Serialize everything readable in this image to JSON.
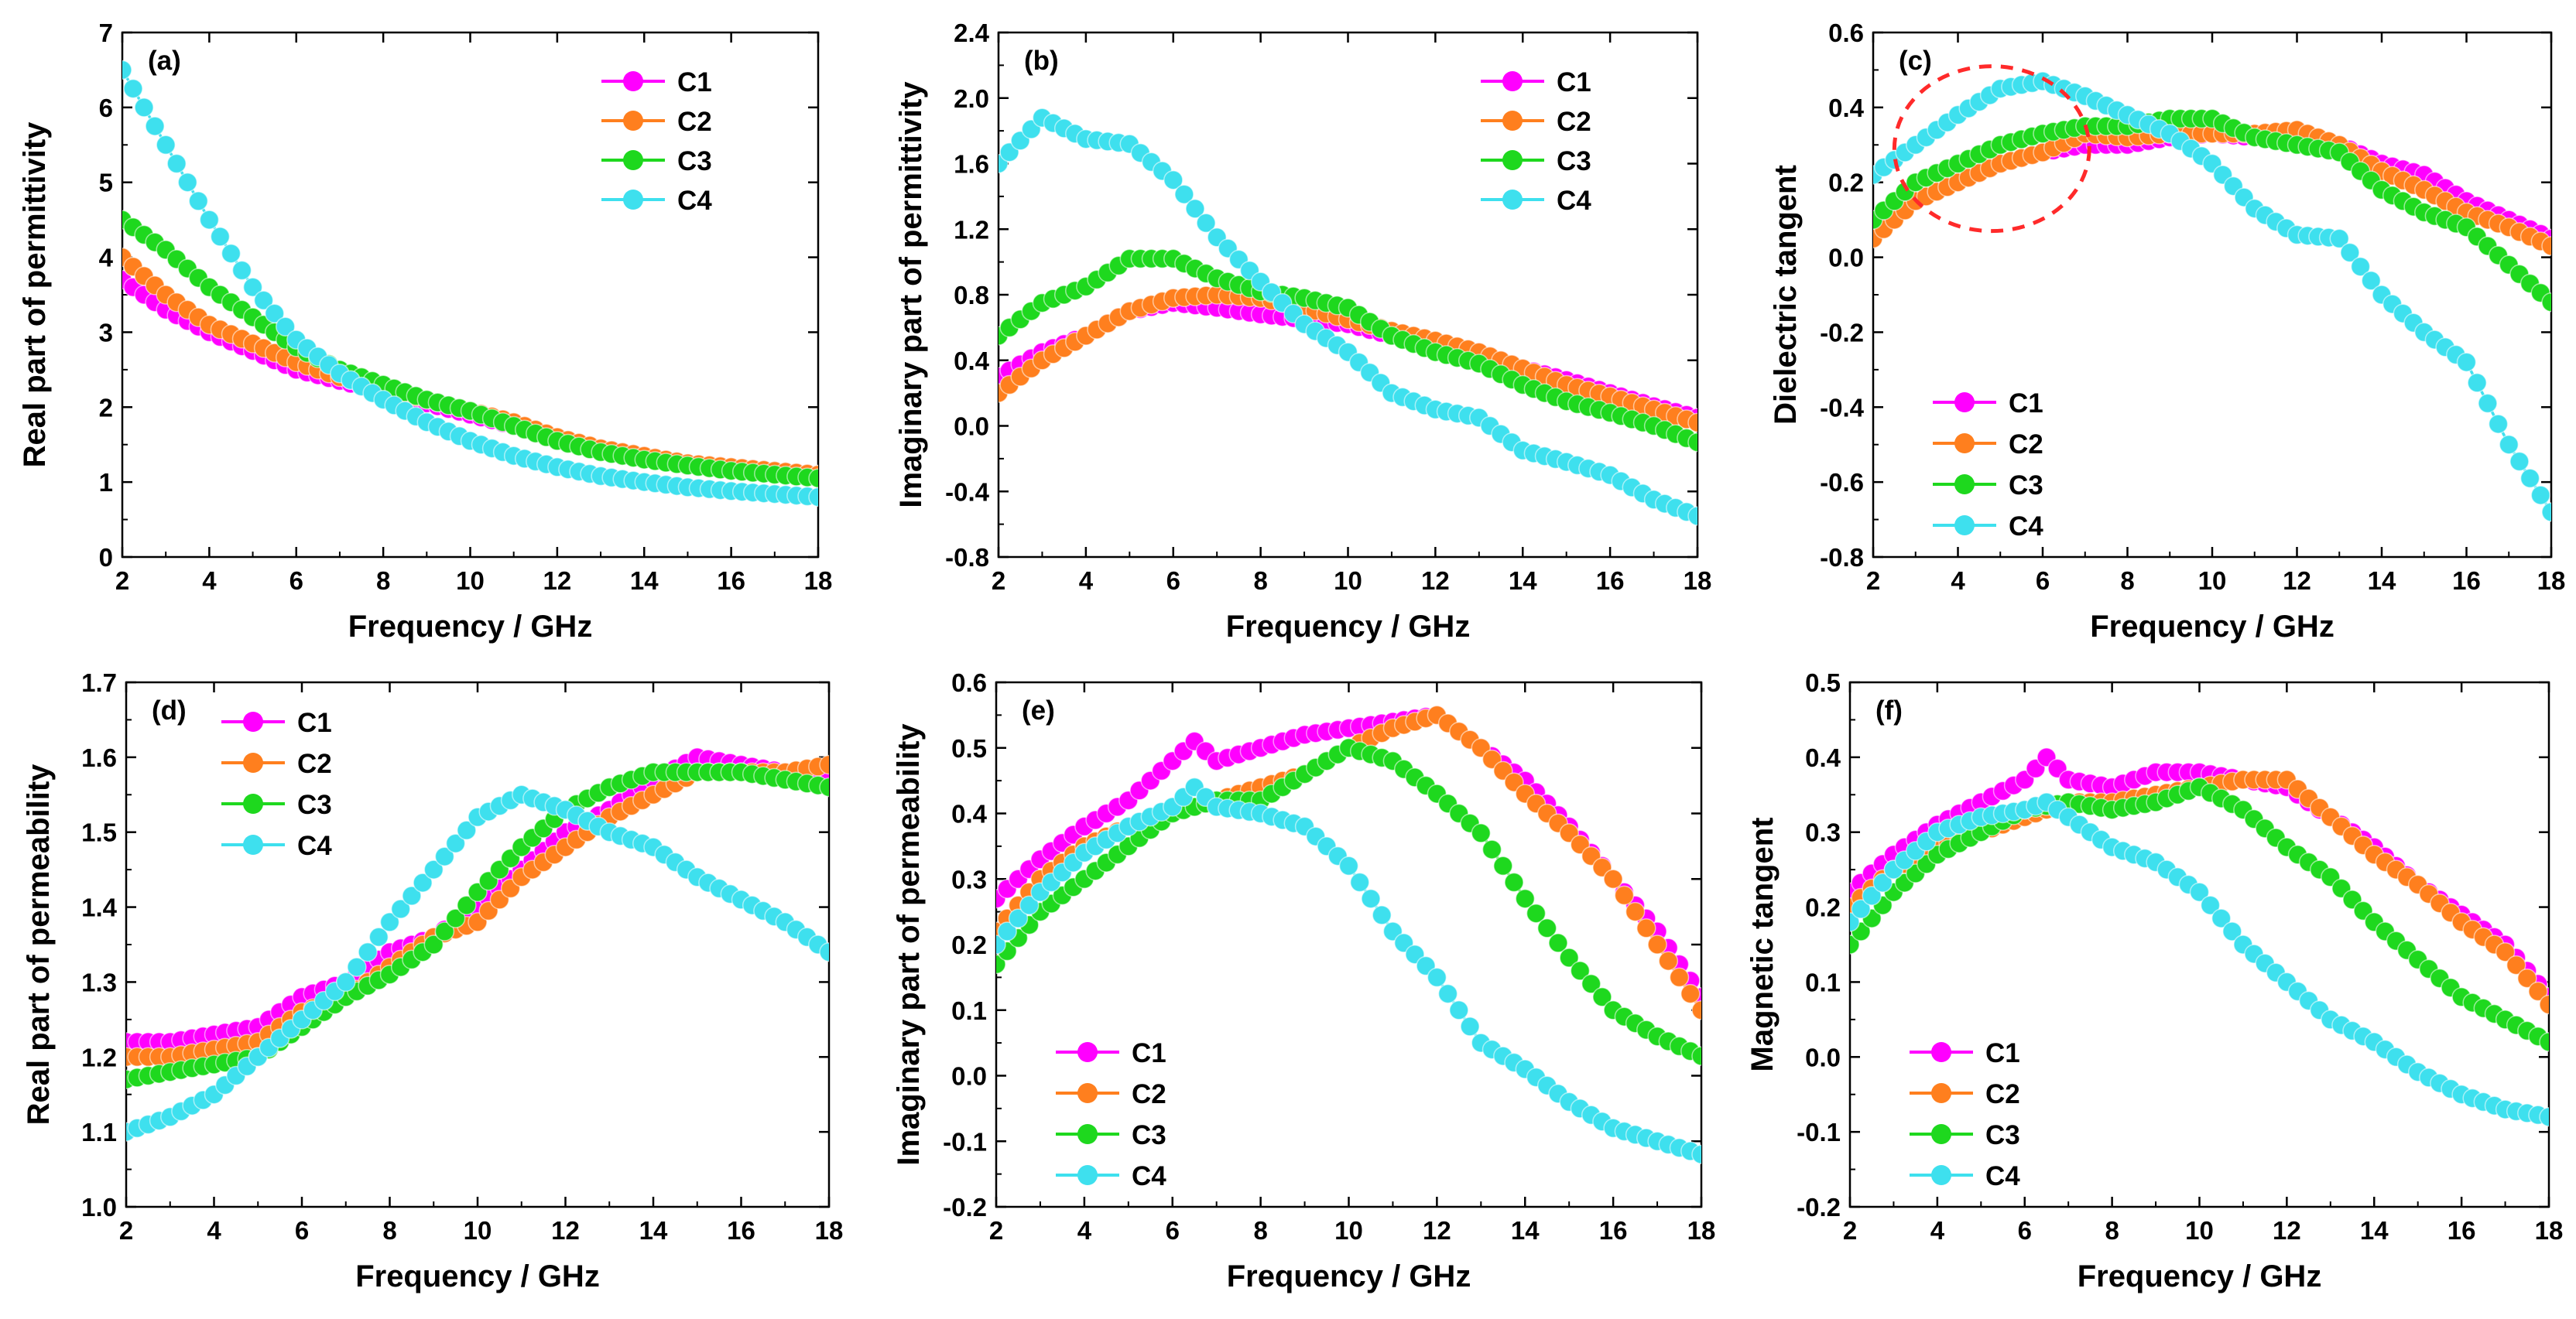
{
  "colors": {
    "C1": "#ff00ff",
    "C2": "#ff7f1e",
    "C3": "#1ed81e",
    "C4": "#3ee0ee",
    "ellipse": "#ff2a2a"
  },
  "chart_data": [
    {
      "id": "a",
      "type": "line",
      "panel_label": "(a)",
      "xlabel": "Frequency / GHz",
      "ylabel": "Real part of permittivity",
      "xlim": [
        2,
        18
      ],
      "ylim": [
        0,
        7
      ],
      "xticks": [
        2,
        4,
        6,
        8,
        10,
        12,
        14,
        16,
        18
      ],
      "yticks": [
        0,
        1,
        2,
        3,
        4,
        5,
        6,
        7
      ],
      "legend_position": "top-right",
      "series": [
        {
          "name": "C1",
          "x": [
            2,
            3,
            4,
            5,
            6,
            7,
            8,
            9,
            10,
            11,
            12,
            13,
            14,
            15,
            16,
            17,
            18
          ],
          "y": [
            3.7,
            3.3,
            3.0,
            2.75,
            2.5,
            2.35,
            2.2,
            2.05,
            1.9,
            1.75,
            1.55,
            1.45,
            1.35,
            1.25,
            1.2,
            1.15,
            1.1
          ]
        },
        {
          "name": "C2",
          "x": [
            2,
            3,
            4,
            5,
            6,
            7,
            8,
            9,
            10,
            11,
            12,
            13,
            14,
            15,
            16,
            17,
            18
          ],
          "y": [
            4.0,
            3.5,
            3.1,
            2.85,
            2.6,
            2.4,
            2.25,
            2.1,
            1.95,
            1.8,
            1.6,
            1.45,
            1.35,
            1.25,
            1.2,
            1.15,
            1.1
          ]
        },
        {
          "name": "C3",
          "x": [
            2,
            3,
            4,
            5,
            6,
            7,
            8,
            9,
            10,
            11,
            12,
            13,
            14,
            15,
            16,
            17,
            18
          ],
          "y": [
            4.5,
            4.1,
            3.6,
            3.2,
            2.8,
            2.5,
            2.3,
            2.1,
            1.95,
            1.75,
            1.55,
            1.4,
            1.3,
            1.22,
            1.15,
            1.1,
            1.05
          ]
        },
        {
          "name": "C4",
          "x": [
            2,
            3,
            4,
            5,
            6,
            7,
            8,
            9,
            10,
            11,
            12,
            13,
            14,
            15,
            16,
            17,
            18
          ],
          "y": [
            6.5,
            5.5,
            4.5,
            3.6,
            2.9,
            2.45,
            2.1,
            1.8,
            1.55,
            1.35,
            1.2,
            1.08,
            1.0,
            0.93,
            0.88,
            0.84,
            0.8
          ]
        }
      ]
    },
    {
      "id": "b",
      "type": "line",
      "panel_label": "(b)",
      "xlabel": "Frequency / GHz",
      "ylabel": "Imaginary part of permittivity",
      "xlim": [
        2,
        18
      ],
      "ylim": [
        -0.8,
        2.4
      ],
      "xticks": [
        2,
        4,
        6,
        8,
        10,
        12,
        14,
        16,
        18
      ],
      "yticks": [
        -0.8,
        -0.4,
        0.0,
        0.4,
        0.8,
        1.2,
        1.6,
        2.0,
        2.4
      ],
      "legend_position": "top-right",
      "series": [
        {
          "name": "C1",
          "x": [
            2,
            3,
            4,
            5,
            6,
            7,
            8,
            9,
            10,
            11,
            12,
            13,
            14,
            15,
            16,
            17,
            18
          ],
          "y": [
            0.3,
            0.45,
            0.55,
            0.7,
            0.75,
            0.72,
            0.68,
            0.65,
            0.62,
            0.55,
            0.5,
            0.45,
            0.35,
            0.28,
            0.2,
            0.12,
            0.05
          ]
        },
        {
          "name": "C2",
          "x": [
            2,
            3,
            4,
            5,
            6,
            7,
            8,
            9,
            10,
            11,
            12,
            13,
            14,
            15,
            16,
            17,
            18
          ],
          "y": [
            0.2,
            0.4,
            0.55,
            0.7,
            0.78,
            0.8,
            0.78,
            0.72,
            0.65,
            0.58,
            0.52,
            0.45,
            0.35,
            0.25,
            0.18,
            0.1,
            0.02
          ]
        },
        {
          "name": "C3",
          "x": [
            2,
            3,
            4,
            5,
            6,
            7,
            8,
            9,
            10,
            11,
            12,
            13,
            14,
            15,
            16,
            17,
            18
          ],
          "y": [
            0.55,
            0.75,
            0.85,
            1.02,
            1.02,
            0.9,
            0.82,
            0.78,
            0.72,
            0.55,
            0.45,
            0.38,
            0.25,
            0.15,
            0.08,
            0.0,
            -0.1
          ]
        },
        {
          "name": "C4",
          "x": [
            2,
            3,
            4,
            5,
            6,
            7,
            8,
            9,
            10,
            11,
            12,
            13,
            14,
            15,
            16,
            17,
            18
          ],
          "y": [
            1.6,
            1.88,
            1.75,
            1.72,
            1.5,
            1.15,
            0.88,
            0.62,
            0.45,
            0.2,
            0.1,
            0.05,
            -0.15,
            -0.22,
            -0.3,
            -0.45,
            -0.55
          ]
        }
      ]
    },
    {
      "id": "c",
      "type": "line",
      "panel_label": "(c)",
      "xlabel": "Frequency / GHz",
      "ylabel": "Dielectric tangent",
      "xlim": [
        2,
        18
      ],
      "ylim": [
        -0.8,
        0.6
      ],
      "xticks": [
        2,
        4,
        6,
        8,
        10,
        12,
        14,
        16,
        18
      ],
      "yticks": [
        -0.8,
        -0.6,
        -0.4,
        -0.2,
        0.0,
        0.2,
        0.4,
        0.6
      ],
      "legend_position": "lower-left",
      "annotation": {
        "type": "dashed-ellipse",
        "center_x": 4.8,
        "center_y": 0.29,
        "rx": 2.3,
        "ry": 0.22
      },
      "series": [
        {
          "name": "C1",
          "x": [
            2,
            3,
            4,
            5,
            6,
            7,
            8,
            9,
            10,
            11,
            12,
            13,
            14,
            15,
            16,
            17,
            18
          ],
          "y": [
            0.07,
            0.15,
            0.2,
            0.25,
            0.28,
            0.3,
            0.3,
            0.32,
            0.33,
            0.32,
            0.32,
            0.3,
            0.25,
            0.22,
            0.15,
            0.1,
            0.05
          ]
        },
        {
          "name": "C2",
          "x": [
            2,
            3,
            4,
            5,
            6,
            7,
            8,
            9,
            10,
            11,
            12,
            13,
            14,
            15,
            16,
            17,
            18
          ],
          "y": [
            0.05,
            0.15,
            0.2,
            0.25,
            0.28,
            0.33,
            0.32,
            0.33,
            0.33,
            0.33,
            0.34,
            0.3,
            0.23,
            0.18,
            0.12,
            0.08,
            0.03
          ]
        },
        {
          "name": "C3",
          "x": [
            2,
            3,
            4,
            5,
            6,
            7,
            8,
            9,
            10,
            11,
            12,
            13,
            14,
            15,
            16,
            17,
            18
          ],
          "y": [
            0.1,
            0.2,
            0.25,
            0.3,
            0.33,
            0.35,
            0.35,
            0.37,
            0.37,
            0.32,
            0.3,
            0.28,
            0.18,
            0.12,
            0.08,
            -0.02,
            -0.12
          ]
        },
        {
          "name": "C4",
          "x": [
            2,
            3,
            4,
            5,
            6,
            7,
            8,
            9,
            10,
            11,
            12,
            13,
            14,
            15,
            16,
            17,
            18
          ],
          "y": [
            0.22,
            0.3,
            0.38,
            0.45,
            0.47,
            0.43,
            0.38,
            0.33,
            0.25,
            0.13,
            0.06,
            0.05,
            -0.1,
            -0.2,
            -0.28,
            -0.5,
            -0.68
          ]
        }
      ]
    },
    {
      "id": "d",
      "type": "line",
      "panel_label": "(d)",
      "xlabel": "Frequency / GHz",
      "ylabel": "Real part of permeability",
      "xlim": [
        2,
        18
      ],
      "ylim": [
        1.0,
        1.7
      ],
      "xticks": [
        2,
        4,
        6,
        8,
        10,
        12,
        14,
        16,
        18
      ],
      "yticks": [
        1.0,
        1.1,
        1.2,
        1.3,
        1.4,
        1.5,
        1.6,
        1.7
      ],
      "legend_position": "top-left",
      "series": [
        {
          "name": "C1",
          "x": [
            2,
            3,
            4,
            5,
            6,
            7,
            8,
            9,
            10,
            11,
            12,
            13,
            14,
            15,
            16,
            17,
            18
          ],
          "y": [
            1.22,
            1.22,
            1.23,
            1.24,
            1.28,
            1.3,
            1.34,
            1.36,
            1.4,
            1.45,
            1.5,
            1.53,
            1.57,
            1.6,
            1.59,
            1.58,
            1.58
          ]
        },
        {
          "name": "C2",
          "x": [
            2,
            3,
            4,
            5,
            6,
            7,
            8,
            9,
            10,
            11,
            12,
            13,
            14,
            15,
            16,
            17,
            18
          ],
          "y": [
            1.2,
            1.2,
            1.21,
            1.22,
            1.26,
            1.28,
            1.32,
            1.36,
            1.38,
            1.44,
            1.48,
            1.52,
            1.55,
            1.58,
            1.58,
            1.58,
            1.59
          ]
        },
        {
          "name": "C3",
          "x": [
            2,
            3,
            4,
            5,
            6,
            7,
            8,
            9,
            10,
            11,
            12,
            13,
            14,
            15,
            16,
            17,
            18
          ],
          "y": [
            1.17,
            1.18,
            1.19,
            1.2,
            1.24,
            1.28,
            1.31,
            1.35,
            1.42,
            1.48,
            1.53,
            1.56,
            1.58,
            1.58,
            1.58,
            1.57,
            1.56
          ]
        },
        {
          "name": "C4",
          "x": [
            2,
            3,
            4,
            5,
            6,
            7,
            8,
            9,
            10,
            11,
            12,
            13,
            14,
            15,
            16,
            17,
            18
          ],
          "y": [
            1.1,
            1.12,
            1.15,
            1.2,
            1.25,
            1.3,
            1.38,
            1.45,
            1.52,
            1.55,
            1.53,
            1.5,
            1.48,
            1.44,
            1.41,
            1.38,
            1.34
          ]
        }
      ]
    },
    {
      "id": "e",
      "type": "line",
      "panel_label": "(e)",
      "xlabel": "Frequency / GHz",
      "ylabel": "Imaginary part of permeability",
      "xlim": [
        2,
        18
      ],
      "ylim": [
        -0.2,
        0.6
      ],
      "xticks": [
        2,
        4,
        6,
        8,
        10,
        12,
        14,
        16,
        18
      ],
      "yticks": [
        -0.2,
        -0.1,
        0.0,
        0.1,
        0.2,
        0.3,
        0.4,
        0.5,
        0.6
      ],
      "legend_position": "lower-left",
      "series": [
        {
          "name": "C1",
          "x": [
            2,
            3,
            4,
            5,
            6,
            6.5,
            7,
            8,
            9,
            10,
            11,
            12,
            13,
            14,
            15,
            16,
            17,
            18
          ],
          "y": [
            0.27,
            0.33,
            0.38,
            0.42,
            0.48,
            0.51,
            0.48,
            0.5,
            0.52,
            0.53,
            0.54,
            0.55,
            0.5,
            0.45,
            0.38,
            0.3,
            0.22,
            0.12
          ]
        },
        {
          "name": "C2",
          "x": [
            2,
            3,
            4,
            5,
            6,
            7,
            8,
            9,
            10,
            11,
            12,
            13,
            14,
            15,
            16,
            17,
            18
          ],
          "y": [
            0.22,
            0.3,
            0.35,
            0.38,
            0.4,
            0.42,
            0.44,
            0.46,
            0.5,
            0.53,
            0.55,
            0.5,
            0.43,
            0.37,
            0.3,
            0.2,
            0.1
          ]
        },
        {
          "name": "C3",
          "x": [
            2,
            3,
            4,
            5,
            6,
            7,
            8,
            9,
            10,
            11,
            12,
            13,
            14,
            15,
            16,
            17,
            18
          ],
          "y": [
            0.17,
            0.25,
            0.3,
            0.35,
            0.4,
            0.42,
            0.42,
            0.46,
            0.5,
            0.48,
            0.43,
            0.37,
            0.27,
            0.18,
            0.1,
            0.06,
            0.03
          ]
        },
        {
          "name": "C4",
          "x": [
            2,
            3,
            4,
            5,
            6,
            6.5,
            7,
            8,
            9,
            10,
            11,
            12,
            13,
            14,
            15,
            16,
            17,
            18
          ],
          "y": [
            0.2,
            0.28,
            0.34,
            0.38,
            0.41,
            0.44,
            0.41,
            0.4,
            0.38,
            0.32,
            0.22,
            0.15,
            0.05,
            0.01,
            -0.04,
            -0.08,
            -0.1,
            -0.12
          ]
        }
      ]
    },
    {
      "id": "f",
      "type": "line",
      "panel_label": "(f)",
      "xlabel": "Frequency / GHz",
      "ylabel": "Magnetic tangent",
      "xlim": [
        2,
        18
      ],
      "ylim": [
        -0.2,
        0.5
      ],
      "xticks": [
        2,
        4,
        6,
        8,
        10,
        12,
        14,
        16,
        18
      ],
      "yticks": [
        -0.2,
        -0.1,
        0.0,
        0.1,
        0.2,
        0.3,
        0.4,
        0.5
      ],
      "legend_position": "lower-left",
      "series": [
        {
          "name": "C1",
          "x": [
            2,
            3,
            4,
            5,
            6,
            6.5,
            7,
            8,
            9,
            10,
            11,
            12,
            13,
            14,
            15,
            16,
            17,
            18
          ],
          "y": [
            0.22,
            0.27,
            0.31,
            0.34,
            0.37,
            0.4,
            0.37,
            0.36,
            0.38,
            0.38,
            0.37,
            0.36,
            0.32,
            0.28,
            0.23,
            0.19,
            0.15,
            0.08
          ]
        },
        {
          "name": "C2",
          "x": [
            2,
            3,
            4,
            5,
            6,
            7,
            8,
            9,
            10,
            11,
            12,
            13,
            14,
            15,
            16,
            17,
            18
          ],
          "y": [
            0.2,
            0.25,
            0.28,
            0.3,
            0.32,
            0.34,
            0.34,
            0.35,
            0.36,
            0.37,
            0.37,
            0.32,
            0.27,
            0.23,
            0.18,
            0.14,
            0.07
          ]
        },
        {
          "name": "C3",
          "x": [
            2,
            3,
            4,
            5,
            6,
            7,
            8,
            9,
            10,
            11,
            12,
            13,
            14,
            15,
            16,
            17,
            18
          ],
          "y": [
            0.15,
            0.22,
            0.27,
            0.3,
            0.33,
            0.34,
            0.33,
            0.34,
            0.36,
            0.33,
            0.28,
            0.24,
            0.18,
            0.13,
            0.08,
            0.05,
            0.02
          ]
        },
        {
          "name": "C4",
          "x": [
            2,
            3,
            4,
            5,
            6,
            6.5,
            7,
            8,
            9,
            10,
            11,
            12,
            13,
            14,
            15,
            16,
            17,
            18
          ],
          "y": [
            0.18,
            0.25,
            0.3,
            0.32,
            0.33,
            0.34,
            0.32,
            0.28,
            0.26,
            0.22,
            0.15,
            0.1,
            0.05,
            0.02,
            -0.02,
            -0.05,
            -0.07,
            -0.08
          ]
        }
      ]
    }
  ]
}
